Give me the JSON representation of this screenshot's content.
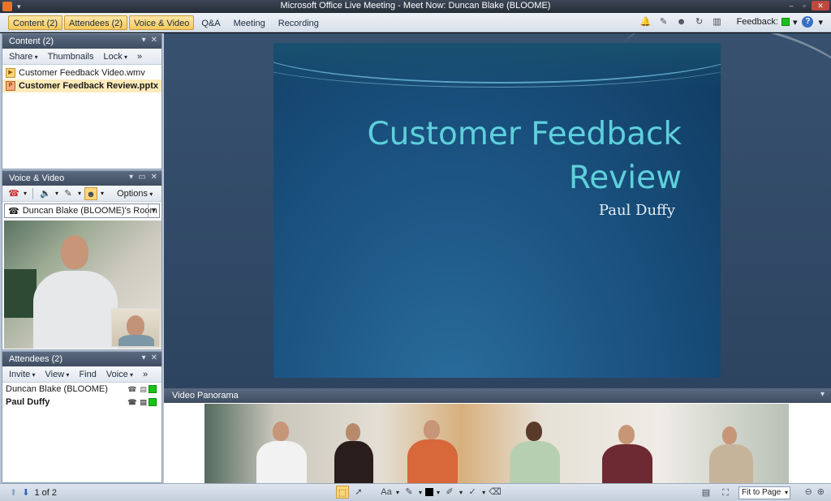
{
  "window": {
    "title": "Microsoft Office Live Meeting - Meet Now: Duncan Blake (BLOOME)",
    "min": "–",
    "max": "▫",
    "close": "✕",
    "qa": "▾"
  },
  "menubar": {
    "tabs": [
      {
        "label": "Content (2)",
        "active": true
      },
      {
        "label": "Attendees (2)",
        "active": true
      },
      {
        "label": "Voice & Video",
        "active": true
      },
      {
        "label": "Q&A",
        "active": false
      },
      {
        "label": "Meeting",
        "active": false
      },
      {
        "label": "Recording",
        "active": false
      }
    ],
    "feedback_label": "Feedback:",
    "feedback_color": "#19c219",
    "help_glyph": "?",
    "tool_icons": [
      "🔔",
      "✎",
      "☻",
      "↻",
      "▥"
    ]
  },
  "content_pane": {
    "title": "Content (2)",
    "toolbar": {
      "share": "Share",
      "thumbnails": "Thumbnails",
      "lock": "Lock",
      "more": "»"
    },
    "files": [
      {
        "name": "Customer Feedback Video.wmv",
        "icon": "video-file-icon",
        "glyph": "▶",
        "selected": false
      },
      {
        "name": "Customer Feedback Review.pptx",
        "icon": "pptx-file-icon",
        "glyph": "P",
        "selected": true
      }
    ]
  },
  "voice_pane": {
    "title": "Voice & Video",
    "options_label": "Options",
    "room_label": "Duncan Blake (BLOOME)'s Room",
    "phone_glyph": "☎"
  },
  "attendees_pane": {
    "title": "Attendees (2)",
    "toolbar": {
      "invite": "Invite",
      "view": "View",
      "find": "Find",
      "voice": "Voice",
      "more": "»"
    },
    "people": [
      {
        "name": "Duncan Blake (BLOOME)",
        "bold": false,
        "status_color": "#19c219"
      },
      {
        "name": "Paul Duffy",
        "bold": true,
        "status_color": "#19c219"
      }
    ]
  },
  "slide": {
    "title_line1": "Customer Feedback",
    "title_line2": "Review",
    "subtitle": "Paul Duffy"
  },
  "panorama": {
    "title": "Video Panorama"
  },
  "pane_ctrls": {
    "menu": "▾",
    "restore": "▭",
    "close": "✕"
  },
  "statusbar": {
    "page_label": "1 of 2",
    "fit_label": "Fit to Page",
    "zoom_out": "⊖",
    "zoom_in": "⊕"
  }
}
